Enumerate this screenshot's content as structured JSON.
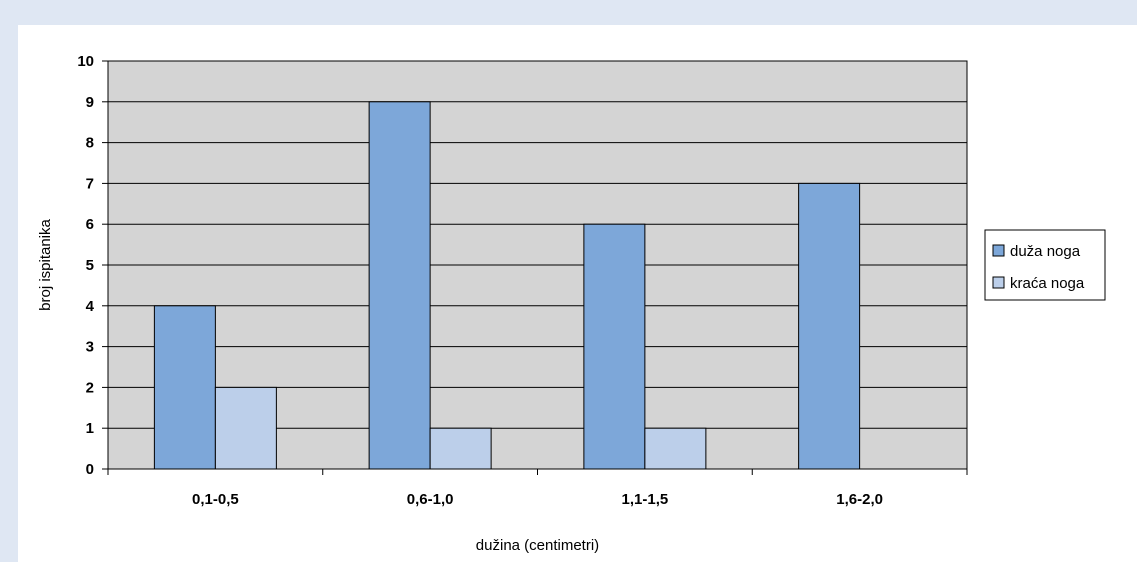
{
  "chart_data": {
    "type": "bar",
    "title": "",
    "xlabel": "dužina (centimetri)",
    "ylabel": "broj ispitanika",
    "categories": [
      "0,1-0,5",
      "0,6-1,0",
      "1,1-1,5",
      "1,6-2,0"
    ],
    "series": [
      {
        "name": "duža noga",
        "values": [
          4,
          9,
          6,
          7
        ],
        "color": "#7da7d9"
      },
      {
        "name": "kraća noga",
        "values": [
          2,
          1,
          1,
          0
        ],
        "color": "#bccfea"
      }
    ],
    "ylim": [
      0,
      10
    ],
    "yticks": [
      "0",
      "1",
      "2",
      "3",
      "4",
      "5",
      "6",
      "7",
      "8",
      "9",
      "10"
    ],
    "grid": true,
    "plot_background": "#d4d4d4",
    "legend_position": "right"
  }
}
